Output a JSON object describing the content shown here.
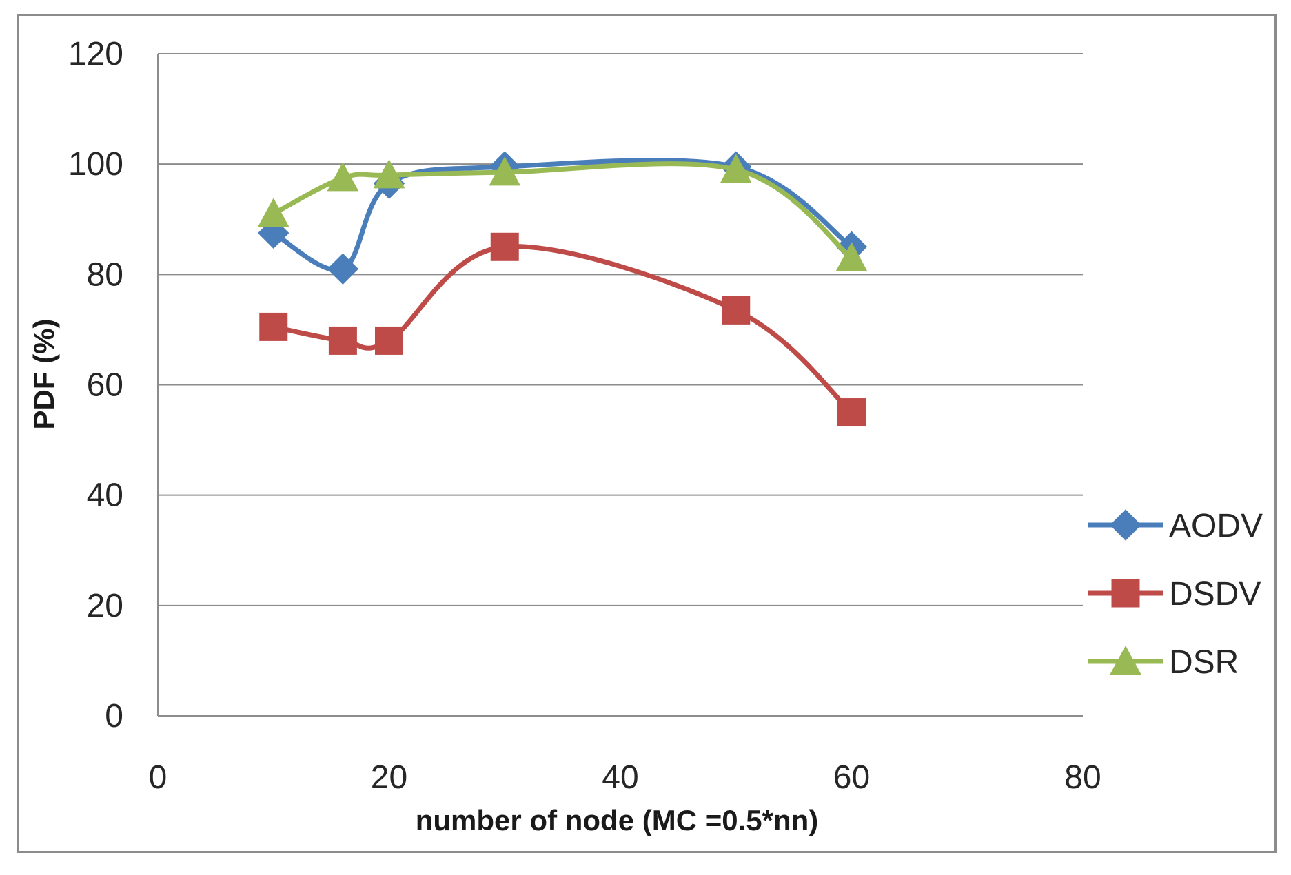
{
  "chart_data": {
    "type": "line",
    "title": "",
    "xlabel": "number of node  (MC =0.5*nn)",
    "ylabel": "PDF (%)",
    "xlim": [
      0,
      80
    ],
    "ylim": [
      0,
      120
    ],
    "xticks": [
      0,
      20,
      40,
      60,
      80
    ],
    "yticks": [
      0,
      20,
      40,
      60,
      80,
      100,
      120
    ],
    "xtick_labels": [
      "0",
      "20",
      "40",
      "60",
      "80"
    ],
    "ytick_labels": [
      "0",
      "20",
      "40",
      "60",
      "80",
      "100",
      "120"
    ],
    "grid": "horizontal",
    "legend_position": "right",
    "x": [
      10,
      16,
      20,
      30,
      50,
      60
    ],
    "series": [
      {
        "name": "AODV",
        "color": "#4a7ebb",
        "marker": "diamond",
        "values": [
          87.5,
          81,
          96.5,
          99.5,
          99.5,
          85
        ]
      },
      {
        "name": "DSDV",
        "color": "#be4b48",
        "marker": "square",
        "values": [
          70.5,
          68,
          68,
          85,
          73.5,
          55
        ]
      },
      {
        "name": "DSR",
        "color": "#98b954",
        "marker": "triangle",
        "values": [
          91,
          97.5,
          98,
          98.5,
          99,
          83
        ]
      }
    ]
  }
}
